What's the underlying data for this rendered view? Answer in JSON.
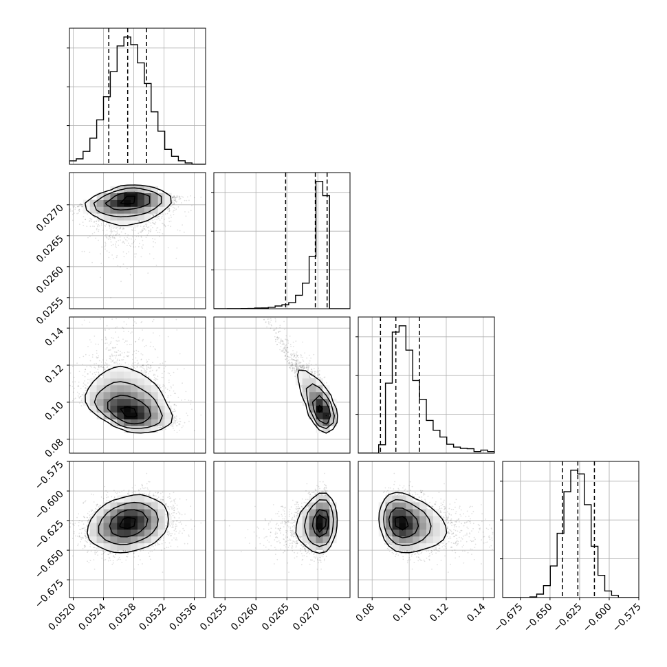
{
  "chart_data": {
    "type": "corner",
    "title": "",
    "grid": true,
    "quantile_lines": "dashed",
    "parameters": [
      {
        "range": [
          0.05195,
          0.05375
        ],
        "ticks": [
          "0.0520",
          "0.0524",
          "0.0528",
          "0.0532",
          "0.0536"
        ],
        "tick_values": [
          0.052,
          0.0524,
          0.0528,
          0.0532,
          0.0536
        ],
        "quantiles": [
          0.05247,
          0.05272,
          0.05297
        ],
        "hist_peak": 0.05267
      },
      {
        "range": [
          0.02532,
          0.02752
        ],
        "ticks": [
          "0.0255",
          "0.0260",
          "0.0265",
          "0.0270"
        ],
        "tick_values": [
          0.0255,
          0.026,
          0.0265,
          0.027
        ],
        "quantiles": [
          0.02648,
          0.02696,
          0.02715
        ],
        "hist_peak": 0.02708
      },
      {
        "range": [
          0.0725,
          0.146
        ],
        "ticks": [
          "0.08",
          "0.10",
          "0.12",
          "0.14"
        ],
        "tick_values": [
          0.08,
          0.1,
          0.12,
          0.14
        ],
        "quantiles": [
          0.0845,
          0.0928,
          0.1055
        ],
        "hist_peak": 0.0875
      },
      {
        "range": [
          -0.69,
          -0.575
        ],
        "ticks": [
          "−0.575",
          "−0.600",
          "−0.625",
          "−0.650",
          "−0.675"
        ],
        "tick_values": [
          -0.575,
          -0.6,
          -0.625,
          -0.65,
          -0.675
        ],
        "x_ticks": [
          "−0.675",
          "−0.650",
          "−0.625",
          "−0.600",
          "−0.575"
        ],
        "x_tick_values": [
          -0.675,
          -0.65,
          -0.625,
          -0.6,
          -0.575
        ],
        "quantiles": [
          -0.6395,
          -0.6265,
          -0.6125
        ],
        "hist_peak": -0.6255
      }
    ]
  }
}
